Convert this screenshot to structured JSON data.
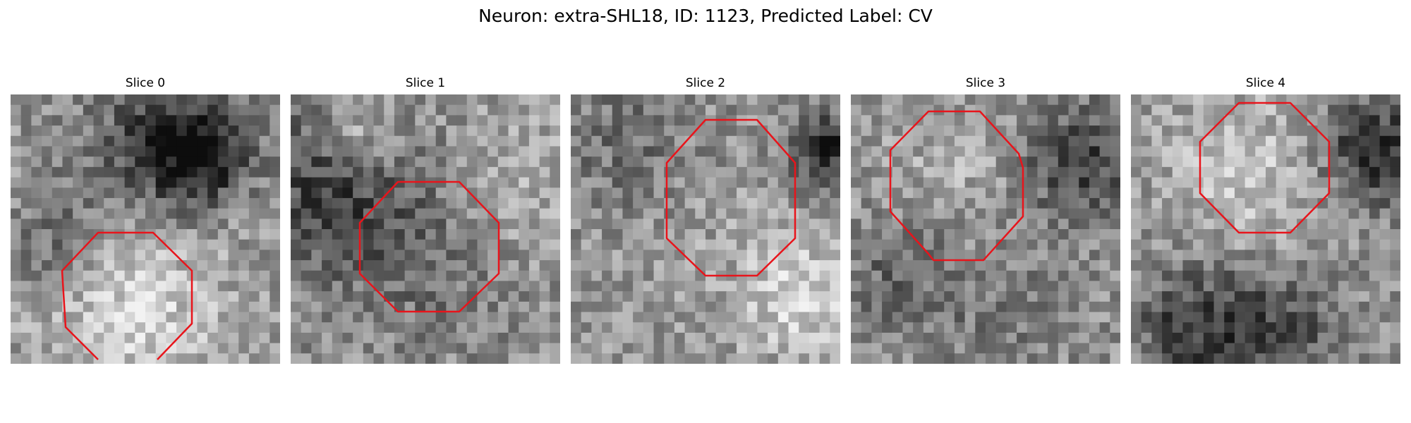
{
  "figure": {
    "title": "Neuron: extra-SHL18, ID: 1123, Predicted Label: CV"
  },
  "colors": {
    "contour": "#e8141b",
    "background": "#ffffff"
  },
  "slices": [
    {
      "title": "Slice 0"
    },
    {
      "title": "Slice 1"
    },
    {
      "title": "Slice 2"
    },
    {
      "title": "Slice 3"
    },
    {
      "title": "Slice 4"
    }
  ]
}
